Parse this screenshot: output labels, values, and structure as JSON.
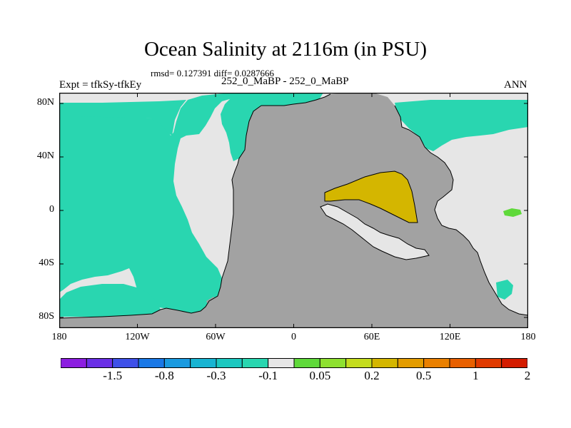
{
  "title": "Ocean Salinity at 2116m (in PSU)",
  "stats": "rmsd= 0.127391 diff= 0.0287666",
  "experiment": "Expt = tfkSy-tfkEy",
  "case_label": "252_0_MaBP - 252_0_MaBP",
  "season": "ANN",
  "colors": {
    "land": "#a2a2a2",
    "neutral": "#e6e6e6",
    "neg_small": "#29d6b0",
    "pos_green": "#5fd93a",
    "pos_gold": "#d4b600",
    "outline": "#000000"
  },
  "axes": {
    "x_ticks": [
      {
        "label": "180",
        "lon": -180
      },
      {
        "label": "120W",
        "lon": -120
      },
      {
        "label": "60W",
        "lon": -60
      },
      {
        "label": "0",
        "lon": 0
      },
      {
        "label": "60E",
        "lon": 60
      },
      {
        "label": "120E",
        "lon": 120
      },
      {
        "label": "180",
        "lon": 180
      }
    ],
    "y_ticks": [
      {
        "label": "80N",
        "lat": 80
      },
      {
        "label": "40N",
        "lat": 40
      },
      {
        "label": "0",
        "lat": 0
      },
      {
        "label": "40S",
        "lat": -40
      },
      {
        "label": "80S",
        "lat": -80
      }
    ]
  },
  "colorbar": {
    "colors": [
      "#8c1ee0",
      "#6a2fe6",
      "#3e50e8",
      "#1a78e6",
      "#1a9ae0",
      "#18b4d2",
      "#1cc8c0",
      "#29d6b0",
      "#e6e6e6",
      "#5fd93a",
      "#8ee030",
      "#c4dc1e",
      "#d4b600",
      "#e39c00",
      "#ea8000",
      "#e86000",
      "#e03a00",
      "#d41c00"
    ],
    "labels": [
      {
        "text": "-1.5",
        "index": 2
      },
      {
        "text": "-0.8",
        "index": 4
      },
      {
        "text": "-0.3",
        "index": 6
      },
      {
        "text": "-0.1",
        "index": 8
      },
      {
        "text": "0.05",
        "index": 10
      },
      {
        "text": "0.2",
        "index": 12
      },
      {
        "text": "0.5",
        "index": 14
      },
      {
        "text": "1",
        "index": 16
      },
      {
        "text": "2",
        "index": 18
      }
    ]
  }
}
